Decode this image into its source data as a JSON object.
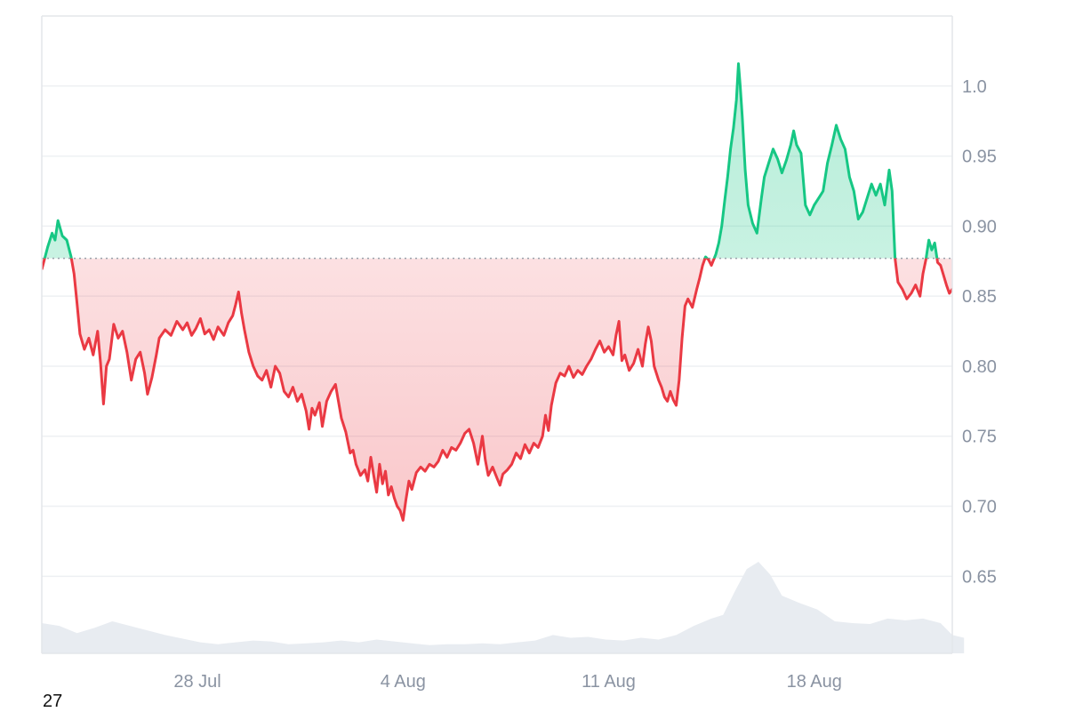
{
  "chart_data": {
    "type": "area",
    "baseline": 0.877,
    "ylim": [
      0.595,
      1.05
    ],
    "y_ticks": [
      "1.0",
      "0.95",
      "0.90",
      "0.85",
      "0.80",
      "0.75",
      "0.70",
      "0.65"
    ],
    "x_ticks": [
      "28 Jul",
      "4 Aug",
      "11 Aug",
      "18 Aug"
    ],
    "x_range_days": [
      0,
      31
    ],
    "x_tick_days": [
      5.3,
      12.3,
      19.3,
      26.3
    ],
    "colors": {
      "above": "#16c784",
      "below": "#ea3943",
      "volume": "#e8ecf1",
      "grid": "#eef0f3"
    },
    "series": [
      {
        "values": [
          [
            0.0,
            0.869
          ],
          [
            0.2,
            0.885
          ],
          [
            0.35,
            0.895
          ],
          [
            0.45,
            0.89
          ],
          [
            0.55,
            0.904
          ],
          [
            0.7,
            0.893
          ],
          [
            0.85,
            0.89
          ],
          [
            1.0,
            0.878
          ],
          [
            1.1,
            0.866
          ],
          [
            1.2,
            0.845
          ],
          [
            1.3,
            0.823
          ],
          [
            1.45,
            0.812
          ],
          [
            1.6,
            0.82
          ],
          [
            1.75,
            0.808
          ],
          [
            1.9,
            0.825
          ],
          [
            2.0,
            0.802
          ],
          [
            2.1,
            0.773
          ],
          [
            2.2,
            0.8
          ],
          [
            2.3,
            0.805
          ],
          [
            2.45,
            0.83
          ],
          [
            2.6,
            0.82
          ],
          [
            2.75,
            0.825
          ],
          [
            2.9,
            0.81
          ],
          [
            3.05,
            0.79
          ],
          [
            3.2,
            0.805
          ],
          [
            3.35,
            0.81
          ],
          [
            3.5,
            0.795
          ],
          [
            3.6,
            0.78
          ],
          [
            3.75,
            0.792
          ],
          [
            3.9,
            0.808
          ],
          [
            4.0,
            0.82
          ],
          [
            4.2,
            0.826
          ],
          [
            4.4,
            0.822
          ],
          [
            4.6,
            0.832
          ],
          [
            4.8,
            0.826
          ],
          [
            4.95,
            0.831
          ],
          [
            5.1,
            0.822
          ],
          [
            5.25,
            0.827
          ],
          [
            5.4,
            0.834
          ],
          [
            5.55,
            0.823
          ],
          [
            5.7,
            0.826
          ],
          [
            5.85,
            0.819
          ],
          [
            6.0,
            0.828
          ],
          [
            6.2,
            0.822
          ],
          [
            6.35,
            0.831
          ],
          [
            6.5,
            0.836
          ],
          [
            6.6,
            0.844
          ],
          [
            6.7,
            0.853
          ],
          [
            6.8,
            0.838
          ],
          [
            6.9,
            0.826
          ],
          [
            7.05,
            0.81
          ],
          [
            7.2,
            0.8
          ],
          [
            7.35,
            0.793
          ],
          [
            7.5,
            0.79
          ],
          [
            7.65,
            0.797
          ],
          [
            7.8,
            0.785
          ],
          [
            7.95,
            0.8
          ],
          [
            8.1,
            0.795
          ],
          [
            8.25,
            0.782
          ],
          [
            8.4,
            0.778
          ],
          [
            8.55,
            0.785
          ],
          [
            8.7,
            0.775
          ],
          [
            8.85,
            0.78
          ],
          [
            9.0,
            0.768
          ],
          [
            9.1,
            0.755
          ],
          [
            9.2,
            0.77
          ],
          [
            9.3,
            0.765
          ],
          [
            9.45,
            0.774
          ],
          [
            9.55,
            0.757
          ],
          [
            9.7,
            0.775
          ],
          [
            9.85,
            0.782
          ],
          [
            10.0,
            0.787
          ],
          [
            10.1,
            0.775
          ],
          [
            10.2,
            0.763
          ],
          [
            10.35,
            0.753
          ],
          [
            10.5,
            0.738
          ],
          [
            10.6,
            0.74
          ],
          [
            10.7,
            0.73
          ],
          [
            10.85,
            0.722
          ],
          [
            11.0,
            0.726
          ],
          [
            11.1,
            0.718
          ],
          [
            11.2,
            0.735
          ],
          [
            11.3,
            0.722
          ],
          [
            11.4,
            0.71
          ],
          [
            11.5,
            0.73
          ],
          [
            11.6,
            0.716
          ],
          [
            11.7,
            0.725
          ],
          [
            11.8,
            0.708
          ],
          [
            11.9,
            0.714
          ],
          [
            12.0,
            0.706
          ],
          [
            12.1,
            0.7
          ],
          [
            12.2,
            0.697
          ],
          [
            12.3,
            0.69
          ],
          [
            12.4,
            0.705
          ],
          [
            12.5,
            0.718
          ],
          [
            12.6,
            0.712
          ],
          [
            12.75,
            0.724
          ],
          [
            12.9,
            0.728
          ],
          [
            13.05,
            0.725
          ],
          [
            13.2,
            0.73
          ],
          [
            13.35,
            0.728
          ],
          [
            13.5,
            0.732
          ],
          [
            13.65,
            0.74
          ],
          [
            13.8,
            0.735
          ],
          [
            13.95,
            0.742
          ],
          [
            14.1,
            0.74
          ],
          [
            14.25,
            0.745
          ],
          [
            14.4,
            0.752
          ],
          [
            14.55,
            0.755
          ],
          [
            14.7,
            0.745
          ],
          [
            14.85,
            0.73
          ],
          [
            15.0,
            0.75
          ],
          [
            15.1,
            0.733
          ],
          [
            15.2,
            0.722
          ],
          [
            15.35,
            0.728
          ],
          [
            15.5,
            0.72
          ],
          [
            15.6,
            0.715
          ],
          [
            15.7,
            0.723
          ],
          [
            15.85,
            0.726
          ],
          [
            16.0,
            0.73
          ],
          [
            16.15,
            0.738
          ],
          [
            16.3,
            0.734
          ],
          [
            16.45,
            0.744
          ],
          [
            16.6,
            0.738
          ],
          [
            16.75,
            0.745
          ],
          [
            16.9,
            0.742
          ],
          [
            17.05,
            0.75
          ],
          [
            17.15,
            0.765
          ],
          [
            17.25,
            0.754
          ],
          [
            17.35,
            0.772
          ],
          [
            17.5,
            0.788
          ],
          [
            17.65,
            0.795
          ],
          [
            17.8,
            0.793
          ],
          [
            17.95,
            0.8
          ],
          [
            18.1,
            0.792
          ],
          [
            18.25,
            0.797
          ],
          [
            18.4,
            0.794
          ],
          [
            18.55,
            0.8
          ],
          [
            18.7,
            0.805
          ],
          [
            18.85,
            0.812
          ],
          [
            19.0,
            0.818
          ],
          [
            19.15,
            0.81
          ],
          [
            19.3,
            0.814
          ],
          [
            19.45,
            0.808
          ],
          [
            19.55,
            0.822
          ],
          [
            19.65,
            0.832
          ],
          [
            19.75,
            0.804
          ],
          [
            19.85,
            0.808
          ],
          [
            20.0,
            0.797
          ],
          [
            20.15,
            0.802
          ],
          [
            20.3,
            0.812
          ],
          [
            20.45,
            0.8
          ],
          [
            20.55,
            0.816
          ],
          [
            20.65,
            0.828
          ],
          [
            20.75,
            0.818
          ],
          [
            20.85,
            0.8
          ],
          [
            21.0,
            0.79
          ],
          [
            21.1,
            0.785
          ],
          [
            21.2,
            0.778
          ],
          [
            21.3,
            0.775
          ],
          [
            21.4,
            0.782
          ],
          [
            21.5,
            0.776
          ],
          [
            21.6,
            0.772
          ],
          [
            21.7,
            0.79
          ],
          [
            21.8,
            0.82
          ],
          [
            21.9,
            0.843
          ],
          [
            22.0,
            0.848
          ],
          [
            22.15,
            0.842
          ],
          [
            22.3,
            0.855
          ],
          [
            22.4,
            0.863
          ],
          [
            22.5,
            0.872
          ],
          [
            22.6,
            0.878
          ],
          [
            22.7,
            0.876
          ],
          [
            22.8,
            0.872
          ],
          [
            22.95,
            0.88
          ],
          [
            23.05,
            0.888
          ],
          [
            23.15,
            0.9
          ],
          [
            23.25,
            0.918
          ],
          [
            23.35,
            0.935
          ],
          [
            23.45,
            0.955
          ],
          [
            23.55,
            0.97
          ],
          [
            23.65,
            0.99
          ],
          [
            23.72,
            1.016
          ],
          [
            23.78,
            1.0
          ],
          [
            23.85,
            0.978
          ],
          [
            23.95,
            0.94
          ],
          [
            24.05,
            0.915
          ],
          [
            24.2,
            0.902
          ],
          [
            24.35,
            0.895
          ],
          [
            24.5,
            0.92
          ],
          [
            24.6,
            0.935
          ],
          [
            24.75,
            0.945
          ],
          [
            24.9,
            0.955
          ],
          [
            25.05,
            0.948
          ],
          [
            25.2,
            0.938
          ],
          [
            25.35,
            0.947
          ],
          [
            25.5,
            0.958
          ],
          [
            25.6,
            0.968
          ],
          [
            25.7,
            0.958
          ],
          [
            25.85,
            0.952
          ],
          [
            26.0,
            0.915
          ],
          [
            26.15,
            0.908
          ],
          [
            26.3,
            0.915
          ],
          [
            26.45,
            0.92
          ],
          [
            26.6,
            0.925
          ],
          [
            26.75,
            0.945
          ],
          [
            26.9,
            0.958
          ],
          [
            27.05,
            0.972
          ],
          [
            27.2,
            0.962
          ],
          [
            27.35,
            0.955
          ],
          [
            27.5,
            0.935
          ],
          [
            27.65,
            0.925
          ],
          [
            27.8,
            0.905
          ],
          [
            27.95,
            0.91
          ],
          [
            28.1,
            0.92
          ],
          [
            28.25,
            0.93
          ],
          [
            28.4,
            0.922
          ],
          [
            28.55,
            0.93
          ],
          [
            28.7,
            0.915
          ],
          [
            28.85,
            0.94
          ],
          [
            28.95,
            0.925
          ],
          [
            29.05,
            0.877
          ],
          [
            29.15,
            0.86
          ],
          [
            29.3,
            0.855
          ],
          [
            29.45,
            0.848
          ],
          [
            29.6,
            0.852
          ],
          [
            29.75,
            0.858
          ],
          [
            29.9,
            0.85
          ],
          [
            30.0,
            0.866
          ],
          [
            30.1,
            0.876
          ],
          [
            30.2,
            0.89
          ],
          [
            30.3,
            0.883
          ],
          [
            30.4,
            0.888
          ],
          [
            30.5,
            0.874
          ],
          [
            30.6,
            0.872
          ],
          [
            30.7,
            0.865
          ],
          [
            30.8,
            0.858
          ],
          [
            30.9,
            0.852
          ],
          [
            31.0,
            0.855
          ],
          [
            31.1,
            0.85
          ],
          [
            31.2,
            0.854
          ],
          [
            31.3,
            0.85
          ],
          [
            31.4,
            0.833
          ]
        ]
      }
    ],
    "volume": [
      [
        0.0,
        0.33
      ],
      [
        0.6,
        0.3
      ],
      [
        1.2,
        0.22
      ],
      [
        1.8,
        0.28
      ],
      [
        2.4,
        0.35
      ],
      [
        3.0,
        0.3
      ],
      [
        3.6,
        0.25
      ],
      [
        4.2,
        0.2
      ],
      [
        4.8,
        0.16
      ],
      [
        5.4,
        0.12
      ],
      [
        6.0,
        0.1
      ],
      [
        6.6,
        0.12
      ],
      [
        7.2,
        0.14
      ],
      [
        7.8,
        0.13
      ],
      [
        8.4,
        0.1
      ],
      [
        9.0,
        0.11
      ],
      [
        9.6,
        0.12
      ],
      [
        10.2,
        0.14
      ],
      [
        10.8,
        0.12
      ],
      [
        11.4,
        0.15
      ],
      [
        12.0,
        0.13
      ],
      [
        12.6,
        0.11
      ],
      [
        13.2,
        0.09
      ],
      [
        13.8,
        0.1
      ],
      [
        14.4,
        0.1
      ],
      [
        15.0,
        0.11
      ],
      [
        15.6,
        0.1
      ],
      [
        16.2,
        0.12
      ],
      [
        16.8,
        0.14
      ],
      [
        17.4,
        0.2
      ],
      [
        18.0,
        0.17
      ],
      [
        18.6,
        0.18
      ],
      [
        19.2,
        0.15
      ],
      [
        19.8,
        0.14
      ],
      [
        20.4,
        0.17
      ],
      [
        21.0,
        0.15
      ],
      [
        21.6,
        0.2
      ],
      [
        22.2,
        0.3
      ],
      [
        22.8,
        0.38
      ],
      [
        23.2,
        0.42
      ],
      [
        23.6,
        0.68
      ],
      [
        24.0,
        0.92
      ],
      [
        24.4,
        1.0
      ],
      [
        24.8,
        0.86
      ],
      [
        25.2,
        0.63
      ],
      [
        25.8,
        0.55
      ],
      [
        26.4,
        0.48
      ],
      [
        27.0,
        0.35
      ],
      [
        27.6,
        0.33
      ],
      [
        28.2,
        0.32
      ],
      [
        28.8,
        0.38
      ],
      [
        29.4,
        0.36
      ],
      [
        30.0,
        0.38
      ],
      [
        30.6,
        0.33
      ],
      [
        31.0,
        0.2
      ],
      [
        31.4,
        0.17
      ]
    ]
  },
  "footer": {
    "number": "27"
  }
}
